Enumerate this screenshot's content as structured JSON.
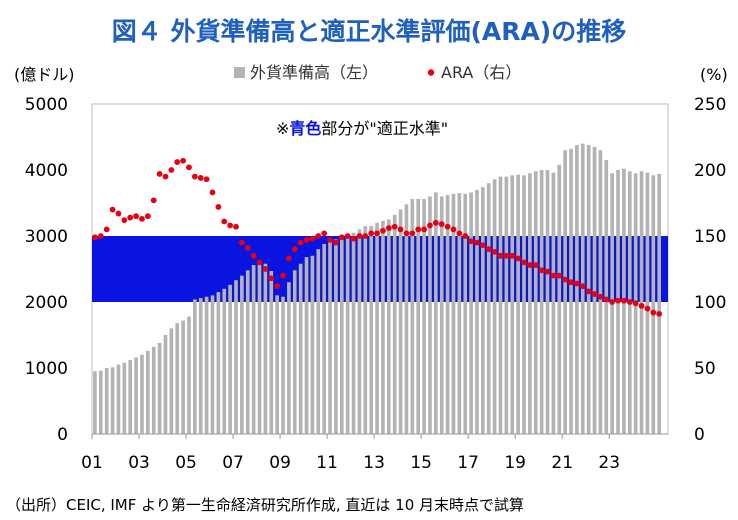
{
  "chart_data": {
    "type": "bar",
    "title": "図４ 外貨準備高と適正水準評価(ARA)の推移",
    "left_axis": {
      "unit": "(億ドル)",
      "ylim": [
        0,
        5000
      ],
      "ticks": [
        "0",
        "1000",
        "2000",
        "3000",
        "4000",
        "5000"
      ]
    },
    "right_axis": {
      "unit": "(%)",
      "ylim": [
        0,
        250
      ],
      "ticks": [
        "0",
        "50",
        "100",
        "150",
        "200",
        "250"
      ]
    },
    "x_axis": {
      "range": [
        2001.0,
        2025.5
      ],
      "ticks": [
        {
          "label": "01",
          "x": 2001.0
        },
        {
          "label": "03",
          "x": 2003.0
        },
        {
          "label": "05",
          "x": 2005.0
        },
        {
          "label": "07",
          "x": 2007.0
        },
        {
          "label": "09",
          "x": 2009.0
        },
        {
          "label": "11",
          "x": 2011.0
        },
        {
          "label": "13",
          "x": 2013.0
        },
        {
          "label": "15",
          "x": 2015.0
        },
        {
          "label": "17",
          "x": 2017.0
        },
        {
          "label": "19",
          "x": 2019.0
        },
        {
          "label": "21",
          "x": 2021.0
        },
        {
          "label": "23",
          "x": 2023.0
        }
      ]
    },
    "adequate_band": {
      "label": "適正水準",
      "low": 100,
      "high": 150,
      "color": "#0a14e0"
    },
    "note": {
      "prefix": "※",
      "highlight": "青色",
      "suffix": "部分が\"適正水準\""
    },
    "legend": "top-center",
    "series": [
      {
        "name": "外貨準備高（左）",
        "kind": "bar",
        "axis": "left",
        "color": "#b3b3b3",
        "x": [
          2001.0,
          2001.25,
          2001.5,
          2001.75,
          2002.0,
          2002.25,
          2002.5,
          2002.75,
          2003.0,
          2003.25,
          2003.5,
          2003.75,
          2004.0,
          2004.25,
          2004.5,
          2004.75,
          2005.0,
          2005.25,
          2005.5,
          2005.75,
          2006.0,
          2006.25,
          2006.5,
          2006.75,
          2007.0,
          2007.25,
          2007.5,
          2007.75,
          2008.0,
          2008.25,
          2008.5,
          2008.75,
          2009.0,
          2009.25,
          2009.5,
          2009.75,
          2010.0,
          2010.25,
          2010.5,
          2010.75,
          2011.0,
          2011.25,
          2011.5,
          2011.75,
          2012.0,
          2012.25,
          2012.5,
          2012.75,
          2013.0,
          2013.25,
          2013.5,
          2013.75,
          2014.0,
          2014.25,
          2014.5,
          2014.75,
          2015.0,
          2015.25,
          2015.5,
          2015.75,
          2016.0,
          2016.25,
          2016.5,
          2016.75,
          2017.0,
          2017.25,
          2017.5,
          2017.75,
          2018.0,
          2018.25,
          2018.5,
          2018.75,
          2019.0,
          2019.25,
          2019.5,
          2019.75,
          2020.0,
          2020.25,
          2020.5,
          2020.75,
          2021.0,
          2021.25,
          2021.5,
          2021.75,
          2022.0,
          2022.25,
          2022.5,
          2022.75,
          2023.0,
          2023.25,
          2023.5,
          2023.75,
          2024.0,
          2024.25,
          2024.5,
          2024.75,
          2025.0
        ],
        "values": [
          950,
          960,
          1000,
          1010,
          1050,
          1080,
          1120,
          1160,
          1200,
          1260,
          1320,
          1380,
          1500,
          1600,
          1680,
          1720,
          1780,
          2040,
          2060,
          2080,
          2100,
          2150,
          2200,
          2260,
          2330,
          2400,
          2480,
          2560,
          2620,
          2580,
          2470,
          2100,
          2080,
          2300,
          2480,
          2580,
          2680,
          2700,
          2800,
          2880,
          2920,
          2950,
          2980,
          3000,
          3050,
          3100,
          3150,
          3150,
          3200,
          3230,
          3250,
          3320,
          3400,
          3480,
          3560,
          3560,
          3560,
          3600,
          3660,
          3600,
          3620,
          3640,
          3650,
          3640,
          3660,
          3700,
          3740,
          3800,
          3860,
          3900,
          3900,
          3920,
          3930,
          3920,
          3950,
          3980,
          4000,
          4000,
          3960,
          4080,
          4300,
          4320,
          4380,
          4400,
          4380,
          4350,
          4300,
          4150,
          3950,
          4000,
          4020,
          3980,
          3950,
          3980,
          3960,
          3920,
          3940
        ]
      },
      {
        "name": "ARA（右）",
        "kind": "scatter",
        "axis": "right",
        "color": "#e60012",
        "x": [
          2001.0,
          2001.25,
          2001.5,
          2001.75,
          2002.0,
          2002.25,
          2002.5,
          2002.75,
          2003.0,
          2003.25,
          2003.5,
          2003.75,
          2004.0,
          2004.25,
          2004.5,
          2004.75,
          2005.0,
          2005.25,
          2005.5,
          2005.75,
          2006.0,
          2006.25,
          2006.5,
          2006.75,
          2007.0,
          2007.25,
          2007.5,
          2007.75,
          2008.0,
          2008.25,
          2008.5,
          2008.75,
          2009.0,
          2009.25,
          2009.5,
          2009.75,
          2010.0,
          2010.25,
          2010.5,
          2010.75,
          2011.0,
          2011.25,
          2011.5,
          2011.75,
          2012.0,
          2012.25,
          2012.5,
          2012.75,
          2013.0,
          2013.25,
          2013.5,
          2013.75,
          2014.0,
          2014.25,
          2014.5,
          2014.75,
          2015.0,
          2015.25,
          2015.5,
          2015.75,
          2016.0,
          2016.25,
          2016.5,
          2016.75,
          2017.0,
          2017.25,
          2017.5,
          2017.75,
          2018.0,
          2018.25,
          2018.5,
          2018.75,
          2019.0,
          2019.25,
          2019.5,
          2019.75,
          2020.0,
          2020.25,
          2020.5,
          2020.75,
          2021.0,
          2021.25,
          2021.5,
          2021.75,
          2022.0,
          2022.25,
          2022.5,
          2022.75,
          2023.0,
          2023.25,
          2023.5,
          2023.75,
          2024.0,
          2024.25,
          2024.5,
          2024.75,
          2025.0
        ],
        "values": [
          149,
          150,
          155,
          170,
          167,
          162,
          164,
          165,
          163,
          165,
          177,
          197,
          195,
          200,
          206,
          207,
          202,
          195,
          194,
          193,
          183,
          172,
          161,
          158,
          157,
          145,
          141,
          135,
          130,
          125,
          118,
          112,
          120,
          133,
          140,
          145,
          147,
          148,
          150,
          152,
          147,
          145,
          149,
          150,
          148,
          150,
          150,
          152,
          152,
          154,
          156,
          157,
          155,
          152,
          152,
          155,
          155,
          158,
          160,
          159,
          157,
          155,
          152,
          150,
          146,
          145,
          143,
          140,
          138,
          135,
          135,
          135,
          133,
          130,
          128,
          128,
          124,
          123,
          120,
          120,
          117,
          115,
          114,
          112,
          108,
          106,
          104,
          102,
          100,
          101,
          101,
          100,
          99,
          97,
          95,
          92,
          91
        ]
      }
    ],
    "source": "（出所）CEIC, IMF より第一生命経済研究所作成, 直近は 10 月末時点で試算"
  }
}
